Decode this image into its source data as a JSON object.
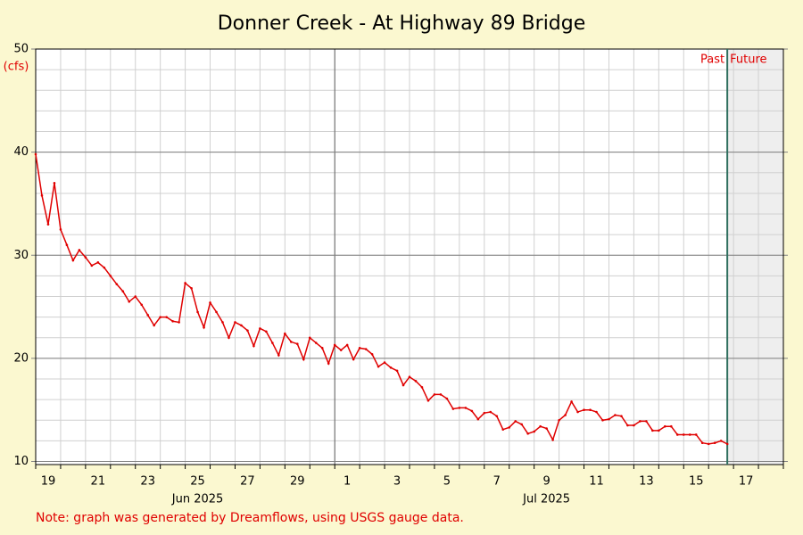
{
  "chart_data": {
    "type": "line",
    "title": "Donner Creek - At Highway 89 Bridge",
    "y_unit": "(cfs)",
    "note": "Note: graph was generated by Dreamflows, using USGS gauge data.",
    "past_label": "Past",
    "future_label": "Future",
    "now": "2025-07-16T18:00",
    "xlim": [
      "2025-06-19T00:00",
      "2025-07-19T00:00"
    ],
    "ylim": [
      9.7,
      50
    ],
    "yticks": [
      10,
      20,
      30,
      40,
      50
    ],
    "xticks": [
      {
        "value": "2025-06-19T12:00",
        "label": "19"
      },
      {
        "value": "2025-06-21T12:00",
        "label": "21"
      },
      {
        "value": "2025-06-23T12:00",
        "label": "23"
      },
      {
        "value": "2025-06-25T12:00",
        "label": "25"
      },
      {
        "value": "2025-06-27T12:00",
        "label": "27"
      },
      {
        "value": "2025-06-29T12:00",
        "label": "29"
      },
      {
        "value": "2025-07-01T12:00",
        "label": "1"
      },
      {
        "value": "2025-07-03T12:00",
        "label": "3"
      },
      {
        "value": "2025-07-05T12:00",
        "label": "5"
      },
      {
        "value": "2025-07-07T12:00",
        "label": "7"
      },
      {
        "value": "2025-07-09T12:00",
        "label": "9"
      },
      {
        "value": "2025-07-11T12:00",
        "label": "11"
      },
      {
        "value": "2025-07-13T12:00",
        "label": "13"
      },
      {
        "value": "2025-07-15T12:00",
        "label": "15"
      },
      {
        "value": "2025-07-17T12:00",
        "label": "17"
      }
    ],
    "month_labels": [
      {
        "value": "2025-06-25T12:00",
        "label": "Jun 2025"
      },
      {
        "value": "2025-07-09T12:00",
        "label": "Jul 2025"
      }
    ],
    "month_boundaries": [
      "2025-07-01T00:00"
    ],
    "grid": true,
    "x": [
      "2025-06-19T00:00",
      "2025-06-19T06:00",
      "2025-06-19T12:00",
      "2025-06-19T18:00",
      "2025-06-20T00:00",
      "2025-06-20T06:00",
      "2025-06-20T12:00",
      "2025-06-20T18:00",
      "2025-06-21T00:00",
      "2025-06-21T06:00",
      "2025-06-21T12:00",
      "2025-06-21T18:00",
      "2025-06-22T00:00",
      "2025-06-22T06:00",
      "2025-06-22T12:00",
      "2025-06-22T18:00",
      "2025-06-23T00:00",
      "2025-06-23T06:00",
      "2025-06-23T12:00",
      "2025-06-23T18:00",
      "2025-06-24T00:00",
      "2025-06-24T06:00",
      "2025-06-24T12:00",
      "2025-06-24T18:00",
      "2025-06-25T00:00",
      "2025-06-25T06:00",
      "2025-06-25T12:00",
      "2025-06-25T18:00",
      "2025-06-26T00:00",
      "2025-06-26T06:00",
      "2025-06-26T12:00",
      "2025-06-26T18:00",
      "2025-06-27T00:00",
      "2025-06-27T06:00",
      "2025-06-27T12:00",
      "2025-06-27T18:00",
      "2025-06-28T00:00",
      "2025-06-28T06:00",
      "2025-06-28T12:00",
      "2025-06-28T18:00",
      "2025-06-29T00:00",
      "2025-06-29T06:00",
      "2025-06-29T12:00",
      "2025-06-29T18:00",
      "2025-06-30T00:00",
      "2025-06-30T06:00",
      "2025-06-30T12:00",
      "2025-06-30T18:00",
      "2025-07-01T00:00",
      "2025-07-01T06:00",
      "2025-07-01T12:00",
      "2025-07-01T18:00",
      "2025-07-02T00:00",
      "2025-07-02T06:00",
      "2025-07-02T12:00",
      "2025-07-02T18:00",
      "2025-07-03T00:00",
      "2025-07-03T06:00",
      "2025-07-03T12:00",
      "2025-07-03T18:00",
      "2025-07-04T00:00",
      "2025-07-04T06:00",
      "2025-07-04T12:00",
      "2025-07-04T18:00",
      "2025-07-05T00:00",
      "2025-07-05T06:00",
      "2025-07-05T12:00",
      "2025-07-05T18:00",
      "2025-07-06T00:00",
      "2025-07-06T06:00",
      "2025-07-06T12:00",
      "2025-07-06T18:00",
      "2025-07-07T00:00",
      "2025-07-07T06:00",
      "2025-07-07T12:00",
      "2025-07-07T18:00",
      "2025-07-08T00:00",
      "2025-07-08T06:00",
      "2025-07-08T12:00",
      "2025-07-08T18:00",
      "2025-07-09T00:00",
      "2025-07-09T06:00",
      "2025-07-09T12:00",
      "2025-07-09T18:00",
      "2025-07-10T00:00",
      "2025-07-10T06:00",
      "2025-07-10T12:00",
      "2025-07-10T18:00",
      "2025-07-11T00:00",
      "2025-07-11T06:00",
      "2025-07-11T12:00",
      "2025-07-11T18:00",
      "2025-07-12T00:00",
      "2025-07-12T06:00",
      "2025-07-12T12:00",
      "2025-07-12T18:00",
      "2025-07-13T00:00",
      "2025-07-13T06:00",
      "2025-07-13T12:00",
      "2025-07-13T18:00",
      "2025-07-14T00:00",
      "2025-07-14T06:00",
      "2025-07-14T12:00",
      "2025-07-14T18:00",
      "2025-07-15T00:00",
      "2025-07-15T06:00",
      "2025-07-15T12:00",
      "2025-07-15T18:00",
      "2025-07-16T00:00",
      "2025-07-16T06:00",
      "2025-07-16T12:00",
      "2025-07-16T18:00"
    ],
    "series": [
      {
        "color": "#e00000",
        "values": [
          39.8,
          35.8,
          33,
          37,
          32.5,
          31,
          29.5,
          30.5,
          29.8,
          29,
          29.3,
          28.8,
          28,
          27.2,
          26.5,
          25.5,
          26,
          25.2,
          24.2,
          23.2,
          24,
          24,
          23.6,
          23.5,
          27.3,
          26.8,
          24.5,
          23,
          25.4,
          24.5,
          23.5,
          22,
          23.5,
          23.2,
          22.7,
          21.2,
          22.9,
          22.6,
          21.5,
          20.3,
          22.4,
          21.6,
          21.4,
          19.9,
          22,
          21.5,
          21,
          19.5,
          21.3,
          20.8,
          21.3,
          19.9,
          21,
          20.9,
          20.4,
          19.2,
          19.6,
          19.1,
          18.8,
          17.4,
          18.2,
          17.8,
          17.2,
          15.9,
          16.5,
          16.5,
          16.1,
          15.1,
          15.2,
          15.2,
          14.9,
          14.1,
          14.7,
          14.8,
          14.4,
          13.1,
          13.3,
          13.9,
          13.6,
          12.7,
          12.9,
          13.4,
          13.2,
          12.1,
          14,
          14.5,
          15.8,
          14.8,
          15,
          15,
          14.8,
          14,
          14.1,
          14.5,
          14.4,
          13.5,
          13.5,
          13.9,
          13.9,
          13,
          13,
          13.4,
          13.4,
          12.6,
          12.6,
          12.6,
          12.6,
          11.8,
          11.7,
          11.8,
          12,
          11.7
        ]
      }
    ]
  }
}
